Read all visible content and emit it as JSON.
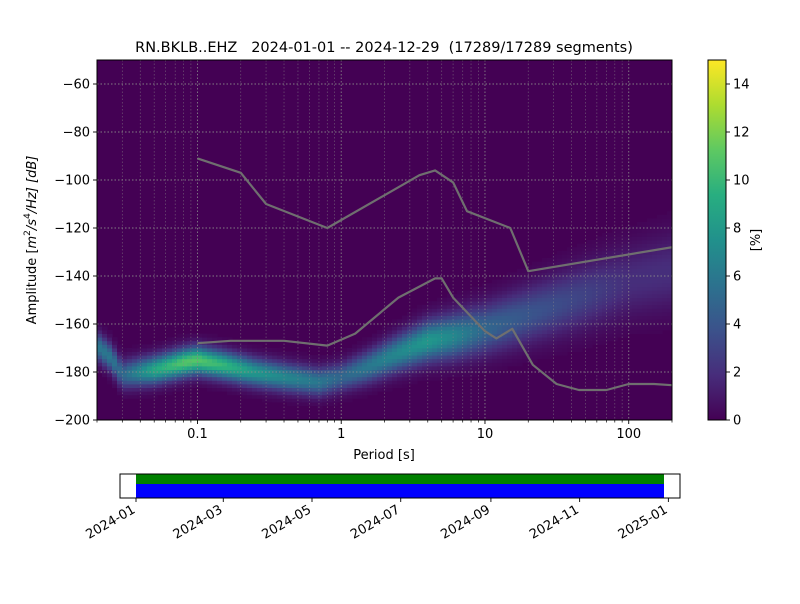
{
  "chart_data": [
    {
      "type": "heatmap",
      "title": "RN.BKLB..EHZ   2024-01-01 -- 2024-12-29  (17289/17289 segments)",
      "xlabel": "Period [s]",
      "ylabel": "Amplitude [m²/s⁴/Hz] [dB]",
      "ylabel_parts": {
        "pre": "Amplitude [",
        "unit": "m",
        "e1": "2",
        "mid": "/s",
        "e2": "4",
        "post": "/Hz] [dB]"
      },
      "x_scale": "log",
      "xlim": [
        0.02,
        200
      ],
      "ylim": [
        -200,
        -50
      ],
      "x_ticks": [
        {
          "value": 0.1,
          "label": "0.1"
        },
        {
          "value": 1,
          "label": "1"
        },
        {
          "value": 10,
          "label": "10"
        },
        {
          "value": 100,
          "label": "100"
        }
      ],
      "y_ticks": [
        {
          "value": -60,
          "label": "−60"
        },
        {
          "value": -80,
          "label": "−80"
        },
        {
          "value": -100,
          "label": "−100"
        },
        {
          "value": -120,
          "label": "−120"
        },
        {
          "value": -140,
          "label": "−140"
        },
        {
          "value": -160,
          "label": "−160"
        },
        {
          "value": -180,
          "label": "−180"
        },
        {
          "value": -200,
          "label": "−200"
        }
      ],
      "grid": true,
      "colormap": "viridis",
      "colorbar": {
        "label": "[%]",
        "range": [
          0,
          15
        ],
        "ticks": [
          {
            "value": 0,
            "label": "0"
          },
          {
            "value": 2,
            "label": "2"
          },
          {
            "value": 4,
            "label": "4"
          },
          {
            "value": 6,
            "label": "6"
          },
          {
            "value": 8,
            "label": "8"
          },
          {
            "value": 10,
            "label": "10"
          },
          {
            "value": 12,
            "label": "12"
          },
          {
            "value": 14,
            "label": "14"
          }
        ]
      },
      "density_ridge": {
        "center": [
          [
            0.02,
            -169
          ],
          [
            0.025,
            -174
          ],
          [
            0.03,
            -181
          ],
          [
            0.05,
            -179
          ],
          [
            0.08,
            -176
          ],
          [
            0.1,
            -175
          ],
          [
            0.15,
            -177
          ],
          [
            0.25,
            -180
          ],
          [
            0.4,
            -182
          ],
          [
            0.7,
            -184
          ],
          [
            1.0,
            -182
          ],
          [
            1.5,
            -178
          ],
          [
            2.5,
            -172
          ],
          [
            4,
            -167
          ],
          [
            6,
            -165
          ],
          [
            10,
            -162
          ],
          [
            20,
            -156
          ],
          [
            50,
            -148
          ],
          [
            100,
            -142
          ],
          [
            200,
            -138
          ]
        ],
        "peak_percent": [
          6,
          6,
          5,
          9,
          11,
          11,
          10,
          8,
          7,
          6,
          5,
          6,
          7,
          8,
          7,
          5,
          4,
          3,
          2,
          2
        ]
      },
      "series": [
        {
          "name": "",
          "x": [
            0.1,
            0.2,
            0.3,
            0.8,
            3.5,
            4.5,
            6,
            7.5,
            15,
            20,
            200
          ],
          "y": [
            -91,
            -97,
            -110,
            -120,
            -98,
            -96,
            -101,
            -113,
            -120,
            -138,
            -128
          ]
        },
        {
          "name": "",
          "x": [
            0.1,
            0.17,
            0.4,
            0.8,
            1.25,
            2.5,
            4.5,
            5,
            6,
            10,
            12,
            15.5,
            21.5,
            31.5,
            45,
            70,
            100,
            150,
            200
          ],
          "y": [
            -168,
            -167,
            -167,
            -169,
            -164,
            -149,
            -141,
            -141,
            -149,
            -163,
            -166,
            -162,
            -177,
            -185,
            -187.5,
            -187.5,
            -185,
            -185,
            -185.5
          ]
        }
      ]
    },
    {
      "type": "timeline",
      "x_ticks": [
        "2024-01",
        "2024-03",
        "2024-05",
        "2024-07",
        "2024-09",
        "2024-11",
        "2025-01"
      ],
      "range": [
        "2023-12-21",
        "2025-01-09"
      ],
      "bars": [
        {
          "name": "",
          "start": "2024-01-01",
          "end": "2024-12-29",
          "color": "#008000"
        },
        {
          "name": "",
          "start": "2024-01-01",
          "end": "2024-12-29",
          "color": "#0000ff"
        }
      ]
    }
  ],
  "colors": {
    "background": "#440154",
    "noise_model_line": "#6f6f6f",
    "grid": "#8a8a8a"
  }
}
